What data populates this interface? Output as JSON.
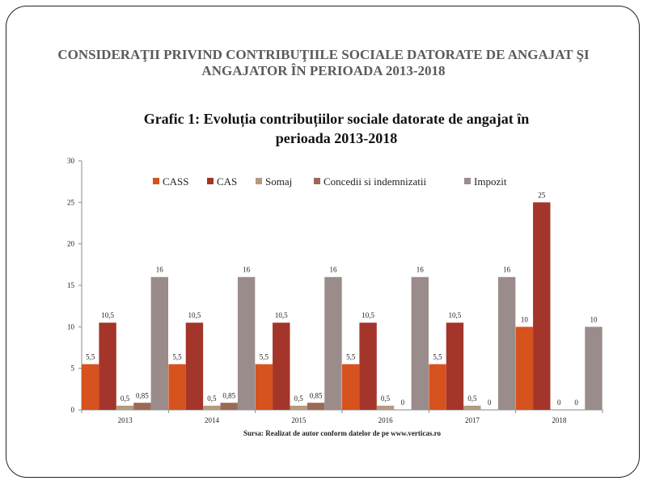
{
  "slide": {
    "title_line1": "CONSIDERAŢII PRIVIND CONTRIBUŢIILE SOCIALE DATORATE DE ANGAJAT ŞI",
    "title_line2": "ANGAJATOR ÎN PERIOADA 2013-2018"
  },
  "chart_data": {
    "type": "bar",
    "title": "Grafic 1: Evoluția contribuțiilor sociale datorate de angajat în perioada 2013-2018",
    "title_lines": [
      "Grafic 1: Evoluția contribuțiilor sociale datorate de angajat în",
      "perioada 2013-2018"
    ],
    "categories": [
      "2013",
      "2014",
      "2015",
      "2016",
      "2017",
      "2018"
    ],
    "series": [
      {
        "name": "CASS",
        "color": "#d6521e",
        "values": [
          5.5,
          5.5,
          5.5,
          5.5,
          5.5,
          10
        ],
        "labels": [
          "5,5",
          "5,5",
          "5,5",
          "5,5",
          "5,5",
          "10"
        ]
      },
      {
        "name": "CAS",
        "color": "#a4352a",
        "values": [
          10.5,
          10.5,
          10.5,
          10.5,
          10.5,
          25
        ],
        "labels": [
          "10,5",
          "10,5",
          "10,5",
          "10,5",
          "10,5",
          "25"
        ]
      },
      {
        "name": "Somaj",
        "color": "#b49a7d",
        "values": [
          0.5,
          0.5,
          0.5,
          0.5,
          0.5,
          0
        ],
        "labels": [
          "0,5",
          "0,5",
          "0,5",
          "0,5",
          "0,5",
          "0"
        ]
      },
      {
        "name": "Concedii si indemnizatii",
        "color": "#9a6a57",
        "values": [
          0.85,
          0.85,
          0.85,
          0,
          0,
          0
        ],
        "labels": [
          "0,85",
          "0,85",
          "0,85",
          "0",
          "0",
          "0"
        ]
      },
      {
        "name": "Impozit",
        "color": "#9a8c8a",
        "values": [
          16,
          16,
          16,
          16,
          16,
          10
        ],
        "labels": [
          "16",
          "16",
          "16",
          "16",
          "16",
          "10"
        ]
      }
    ],
    "ylim": [
      0,
      30
    ],
    "yticks": [
      0,
      5,
      10,
      15,
      20,
      25,
      30
    ],
    "grid": false,
    "legend_position": "top",
    "source": "Sursa: Realizat de autor conform datelor de pe www.verticas.ro"
  }
}
